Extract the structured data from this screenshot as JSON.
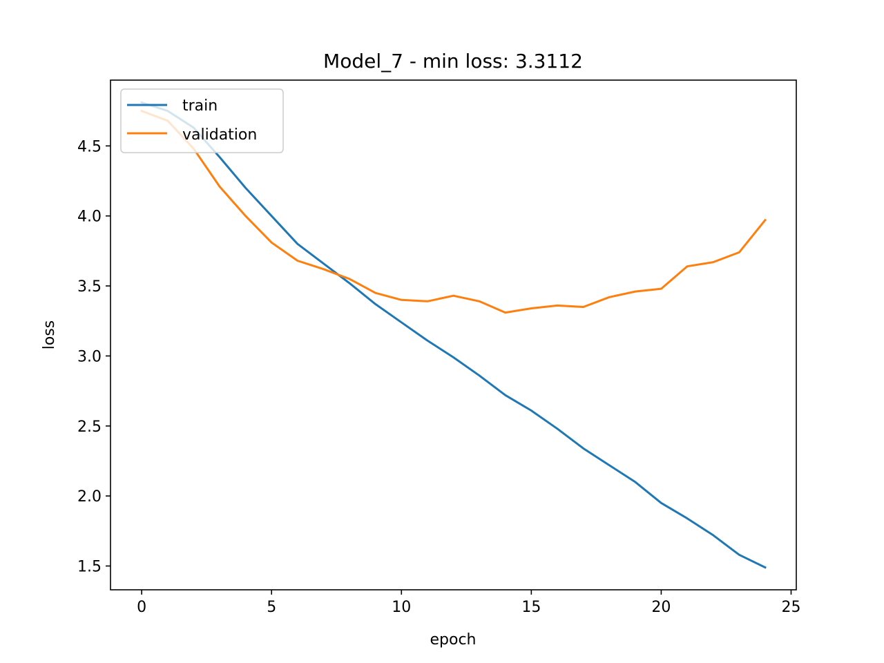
{
  "chart_data": {
    "type": "line",
    "title": "Model_7 - min loss: 3.3112",
    "xlabel": "epoch",
    "ylabel": "loss",
    "xlim": [
      -1.2,
      25.2
    ],
    "ylim": [
      1.33,
      4.97
    ],
    "xticks": [
      0,
      5,
      10,
      15,
      20,
      25
    ],
    "yticks": [
      1.5,
      2.0,
      2.5,
      3.0,
      3.5,
      4.0,
      4.5
    ],
    "xtick_labels": [
      "0",
      "5",
      "10",
      "15",
      "20",
      "25"
    ],
    "ytick_labels": [
      "1.5",
      "2.0",
      "2.5",
      "3.0",
      "3.5",
      "4.0",
      "4.5"
    ],
    "grid": false,
    "legend_position": "upper-left",
    "x": [
      0,
      1,
      2,
      3,
      4,
      5,
      6,
      7,
      8,
      9,
      10,
      11,
      12,
      13,
      14,
      15,
      16,
      17,
      18,
      19,
      20,
      21,
      22,
      23,
      24
    ],
    "series": [
      {
        "name": "train",
        "color": "#1f77b4",
        "values": [
          4.81,
          4.75,
          4.63,
          4.42,
          4.2,
          4.0,
          3.8,
          3.66,
          3.52,
          3.37,
          3.24,
          3.11,
          2.99,
          2.86,
          2.72,
          2.61,
          2.48,
          2.34,
          2.22,
          2.1,
          1.95,
          1.84,
          1.72,
          1.58,
          1.49
        ]
      },
      {
        "name": "validation",
        "color": "#ff7f0e",
        "values": [
          4.75,
          4.68,
          4.48,
          4.21,
          4.0,
          3.81,
          3.68,
          3.62,
          3.55,
          3.45,
          3.4,
          3.39,
          3.43,
          3.39,
          3.31,
          3.34,
          3.36,
          3.35,
          3.42,
          3.46,
          3.48,
          3.64,
          3.67,
          3.74,
          3.97
        ]
      }
    ]
  }
}
